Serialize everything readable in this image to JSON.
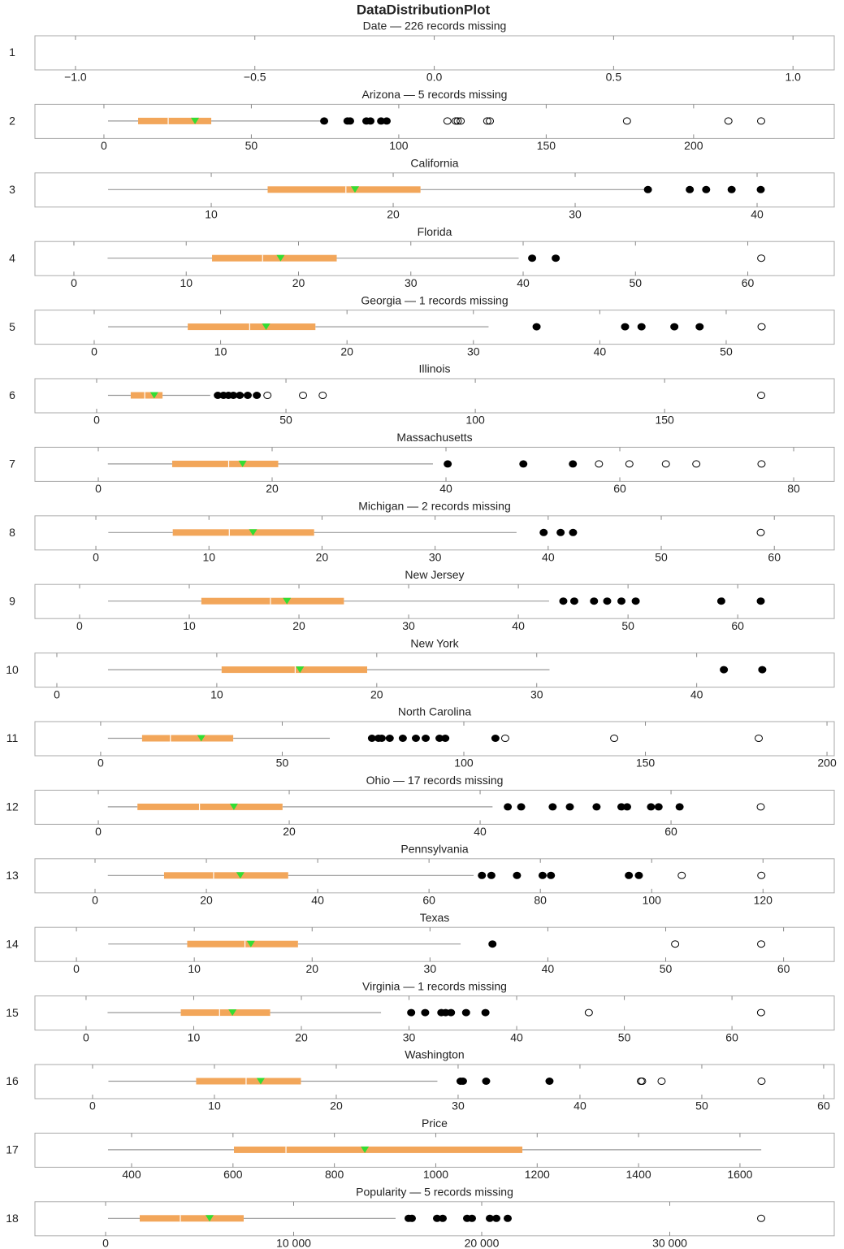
{
  "chart_data": {
    "type": "box",
    "title": "DataDistributionPlot",
    "box_color": "#f2a65a",
    "whisker_color": "#999999",
    "median_color": "#ffffff",
    "mean_color": "#33dd33",
    "outlier_color": "#000000",
    "panels": [
      {
        "label": "1",
        "title": "Date — 226 records missing",
        "xlim": [
          -1.113,
          1.115
        ],
        "xticks": [
          {
            "value": -1,
            "label": "−1.0"
          },
          {
            "value": -0.5,
            "label": "−0.5"
          },
          {
            "value": 0,
            "label": "0.0"
          },
          0.5,
          {
            "value": 1,
            "label": "1.0"
          }
        ]
      },
      {
        "label": "2",
        "title": "Arizona — 5 records missing",
        "xlim": [
          -23.4,
          247.7
        ],
        "xticks": [
          0,
          50,
          100,
          150,
          200
        ],
        "whisker_low": 1.4,
        "q1": 11.6,
        "median": 21.8,
        "mean": 30.9,
        "q3": 36.4,
        "whisker_high": 73.6,
        "outliers": [
          74.7,
          82.6,
          83.5,
          89,
          90.4,
          94,
          95.9
        ],
        "far_outliers": [
          116.5,
          119.3,
          120,
          121,
          130,
          130.9,
          177.4,
          211.8,
          222.9
        ]
      },
      {
        "label": "3",
        "title": "California",
        "xlim": [
          0.31,
          44.24
        ],
        "xticks": [
          10,
          20,
          30,
          40
        ],
        "whisker_low": 4.33,
        "q1": 13.1,
        "median": 17.4,
        "mean": 17.9,
        "q3": 21.5,
        "whisker_high": 33.9,
        "outliers": [
          34.0,
          36.3,
          37.2,
          38.6,
          40.2
        ],
        "far_outliers": []
      },
      {
        "label": "4",
        "title": "Florida",
        "xlim": [
          -3.47,
          67.7
        ],
        "xticks": [
          0,
          10,
          20,
          30,
          40,
          50,
          60
        ],
        "whisker_low": 3.0,
        "q1": 12.3,
        "median": 16.8,
        "mean": 18.4,
        "q3": 23.4,
        "whisker_high": 39.6,
        "outliers": [
          40.8,
          42.9
        ],
        "far_outliers": [
          61.2
        ]
      },
      {
        "label": "5",
        "title": "Georgia — 1 records missing",
        "xlim": [
          -4.69,
          58.55
        ],
        "xticks": [
          0,
          10,
          20,
          30,
          40,
          50
        ],
        "whisker_low": 1.1,
        "q1": 7.4,
        "median": 12.3,
        "mean": 13.6,
        "q3": 17.5,
        "whisker_high": 31.2,
        "outliers": [
          35.0,
          42.0,
          43.3,
          45.9,
          47.9
        ],
        "far_outliers": [
          52.8
        ]
      },
      {
        "label": "6",
        "title": "Illinois",
        "xlim": [
          -16.3,
          194.8
        ],
        "xticks": [
          0,
          50,
          100,
          150
        ],
        "whisker_low": 3.0,
        "q1": 9.0,
        "median": 12.7,
        "mean": 15.2,
        "q3": 17.4,
        "whisker_high": 30.0,
        "outliers": [
          32.0,
          33.5,
          34.8,
          36.1,
          37.8,
          39.9,
          42.3
        ],
        "far_outliers": [
          45.1,
          54.5,
          59.7,
          175.5
        ]
      },
      {
        "label": "7",
        "title": "Massachusetts",
        "xlim": [
          -7.29,
          84.67
        ],
        "xticks": [
          0,
          20,
          40,
          60,
          80
        ],
        "whisker_low": 1.1,
        "q1": 8.5,
        "median": 15.0,
        "mean": 16.6,
        "q3": 20.7,
        "whisker_high": 38.5,
        "outliers": [
          40.2,
          48.9,
          54.6
        ],
        "far_outliers": [
          57.6,
          61.1,
          65.3,
          68.8,
          76.3
        ]
      },
      {
        "label": "8",
        "title": "Michigan — 2 records missing",
        "xlim": [
          -5.39,
          65.3
        ],
        "xticks": [
          0,
          10,
          20,
          30,
          40,
          50,
          60
        ],
        "whisker_low": 1.1,
        "q1": 6.8,
        "median": 11.8,
        "mean": 13.9,
        "q3": 19.3,
        "whisker_high": 37.2,
        "outliers": [
          39.6,
          41.1,
          42.2
        ],
        "far_outliers": [
          58.8
        ]
      },
      {
        "label": "9",
        "title": "New Jersey",
        "xlim": [
          -4.07,
          68.8
        ],
        "xticks": [
          0,
          10,
          20,
          30,
          40,
          50,
          60
        ],
        "whisker_low": 2.6,
        "q1": 11.1,
        "median": 17.4,
        "mean": 18.9,
        "q3": 24.1,
        "whisker_high": 42.8,
        "outliers": [
          44.1,
          45.1,
          46.9,
          48.1,
          49.4,
          50.7,
          58.5,
          62.1
        ],
        "far_outliers": []
      },
      {
        "label": "10",
        "title": "New York",
        "xlim": [
          -1.37,
          48.6
        ],
        "xticks": [
          0,
          10,
          20,
          30,
          40
        ],
        "whisker_low": 3.2,
        "q1": 10.3,
        "median": 14.9,
        "mean": 15.2,
        "q3": 19.4,
        "whisker_high": 30.8,
        "outliers": [
          41.7,
          44.1
        ],
        "far_outliers": []
      },
      {
        "label": "11",
        "title": "North Carolina",
        "xlim": [
          -18.1,
          202.0
        ],
        "xticks": [
          0,
          50,
          100,
          150,
          200
        ],
        "whisker_low": 2.0,
        "q1": 11.4,
        "median": 19.2,
        "mean": 27.7,
        "q3": 36.5,
        "whisker_high": 63.1,
        "outliers": [
          74.7,
          76.5,
          77.4,
          79.6,
          83.2,
          86.8,
          89.5,
          93.3,
          94.9,
          108.7
        ],
        "far_outliers": [
          111.4,
          141.4,
          181.2
        ]
      },
      {
        "label": "12",
        "title": "Ohio — 17 records missing",
        "xlim": [
          -6.64,
          77.1
        ],
        "xticks": [
          0,
          20,
          40,
          60
        ],
        "whisker_low": 1.0,
        "q1": 4.1,
        "median": 10.6,
        "mean": 14.2,
        "q3": 19.3,
        "whisker_high": 41.3,
        "outliers": [
          42.9,
          44.3,
          47.6,
          49.4,
          52.2,
          54.8,
          55.4,
          57.9,
          58.7,
          60.9
        ],
        "far_outliers": [
          69.4
        ]
      },
      {
        "label": "13",
        "title": "Pennsylvania",
        "xlim": [
          -10.8,
          132.8
        ],
        "xticks": [
          0,
          20,
          40,
          60,
          80,
          100,
          120
        ],
        "whisker_low": 2.3,
        "q1": 12.4,
        "median": 21.3,
        "mean": 26.1,
        "q3": 34.7,
        "whisker_high": 68.0,
        "outliers": [
          69.5,
          71.2,
          75.8,
          80.4,
          81.9,
          95.9,
          97.7
        ],
        "far_outliers": [
          105.4,
          119.7
        ]
      },
      {
        "label": "14",
        "title": "Texas",
        "xlim": [
          -3.52,
          64.3
        ],
        "xticks": [
          0,
          10,
          20,
          30,
          40,
          50,
          60
        ],
        "whisker_low": 2.7,
        "q1": 9.4,
        "median": 14.3,
        "mean": 14.8,
        "q3": 18.8,
        "whisker_high": 32.6,
        "outliers": [
          35.3
        ],
        "far_outliers": [
          50.8,
          58.1
        ]
      },
      {
        "label": "15",
        "title": "Virginia — 1 records missing",
        "xlim": [
          -4.75,
          69.5
        ],
        "xticks": [
          0,
          10,
          20,
          30,
          40,
          50,
          60
        ],
        "whisker_low": 2.0,
        "q1": 8.8,
        "median": 12.4,
        "mean": 13.6,
        "q3": 17.1,
        "whisker_high": 27.4,
        "outliers": [
          30.2,
          31.5,
          33.0,
          33.4,
          33.9,
          35.3,
          37.1
        ],
        "far_outliers": [
          46.7,
          62.7
        ]
      },
      {
        "label": "16",
        "title": "Washington",
        "xlim": [
          -4.73,
          60.87
        ],
        "xticks": [
          0,
          10,
          20,
          30,
          40,
          50,
          60
        ],
        "whisker_low": 1.3,
        "q1": 8.5,
        "median": 12.6,
        "mean": 13.8,
        "q3": 17.1,
        "whisker_high": 28.3,
        "outliers": [
          30.2,
          30.4,
          32.3,
          37.5
        ],
        "far_outliers": [
          45.0,
          45.1,
          46.7,
          54.9
        ]
      },
      {
        "label": "17",
        "title": "Price",
        "xlim": [
          209.3,
          1786
        ],
        "xticks": [
          400,
          600,
          800,
          1000,
          1200,
          1400,
          1600
        ],
        "whisker_low": 353.5,
        "q1": 601.9,
        "median": 704.5,
        "mean": 860,
        "q3": 1170.8,
        "whisker_high": 1642,
        "outliers": [],
        "far_outliers": []
      },
      {
        "label": "18",
        "title": "Popularity — 5 records missing",
        "xlim": [
          -3758,
          38747
        ],
        "xticks": [
          0,
          {
            "value": 10000,
            "label": "10 000"
          },
          {
            "value": 20000,
            "label": "20 000"
          },
          {
            "value": 30000,
            "label": "30 000"
          }
        ],
        "whisker_low": 130,
        "q1": 1814,
        "median": 3974,
        "mean": 5529,
        "q3": 7343,
        "whisker_high": 15421,
        "outliers": [
          16112,
          16285,
          17624,
          17927,
          19222,
          19482,
          20432,
          20778,
          21382
        ],
        "far_outliers": [
          34860
        ]
      }
    ]
  }
}
